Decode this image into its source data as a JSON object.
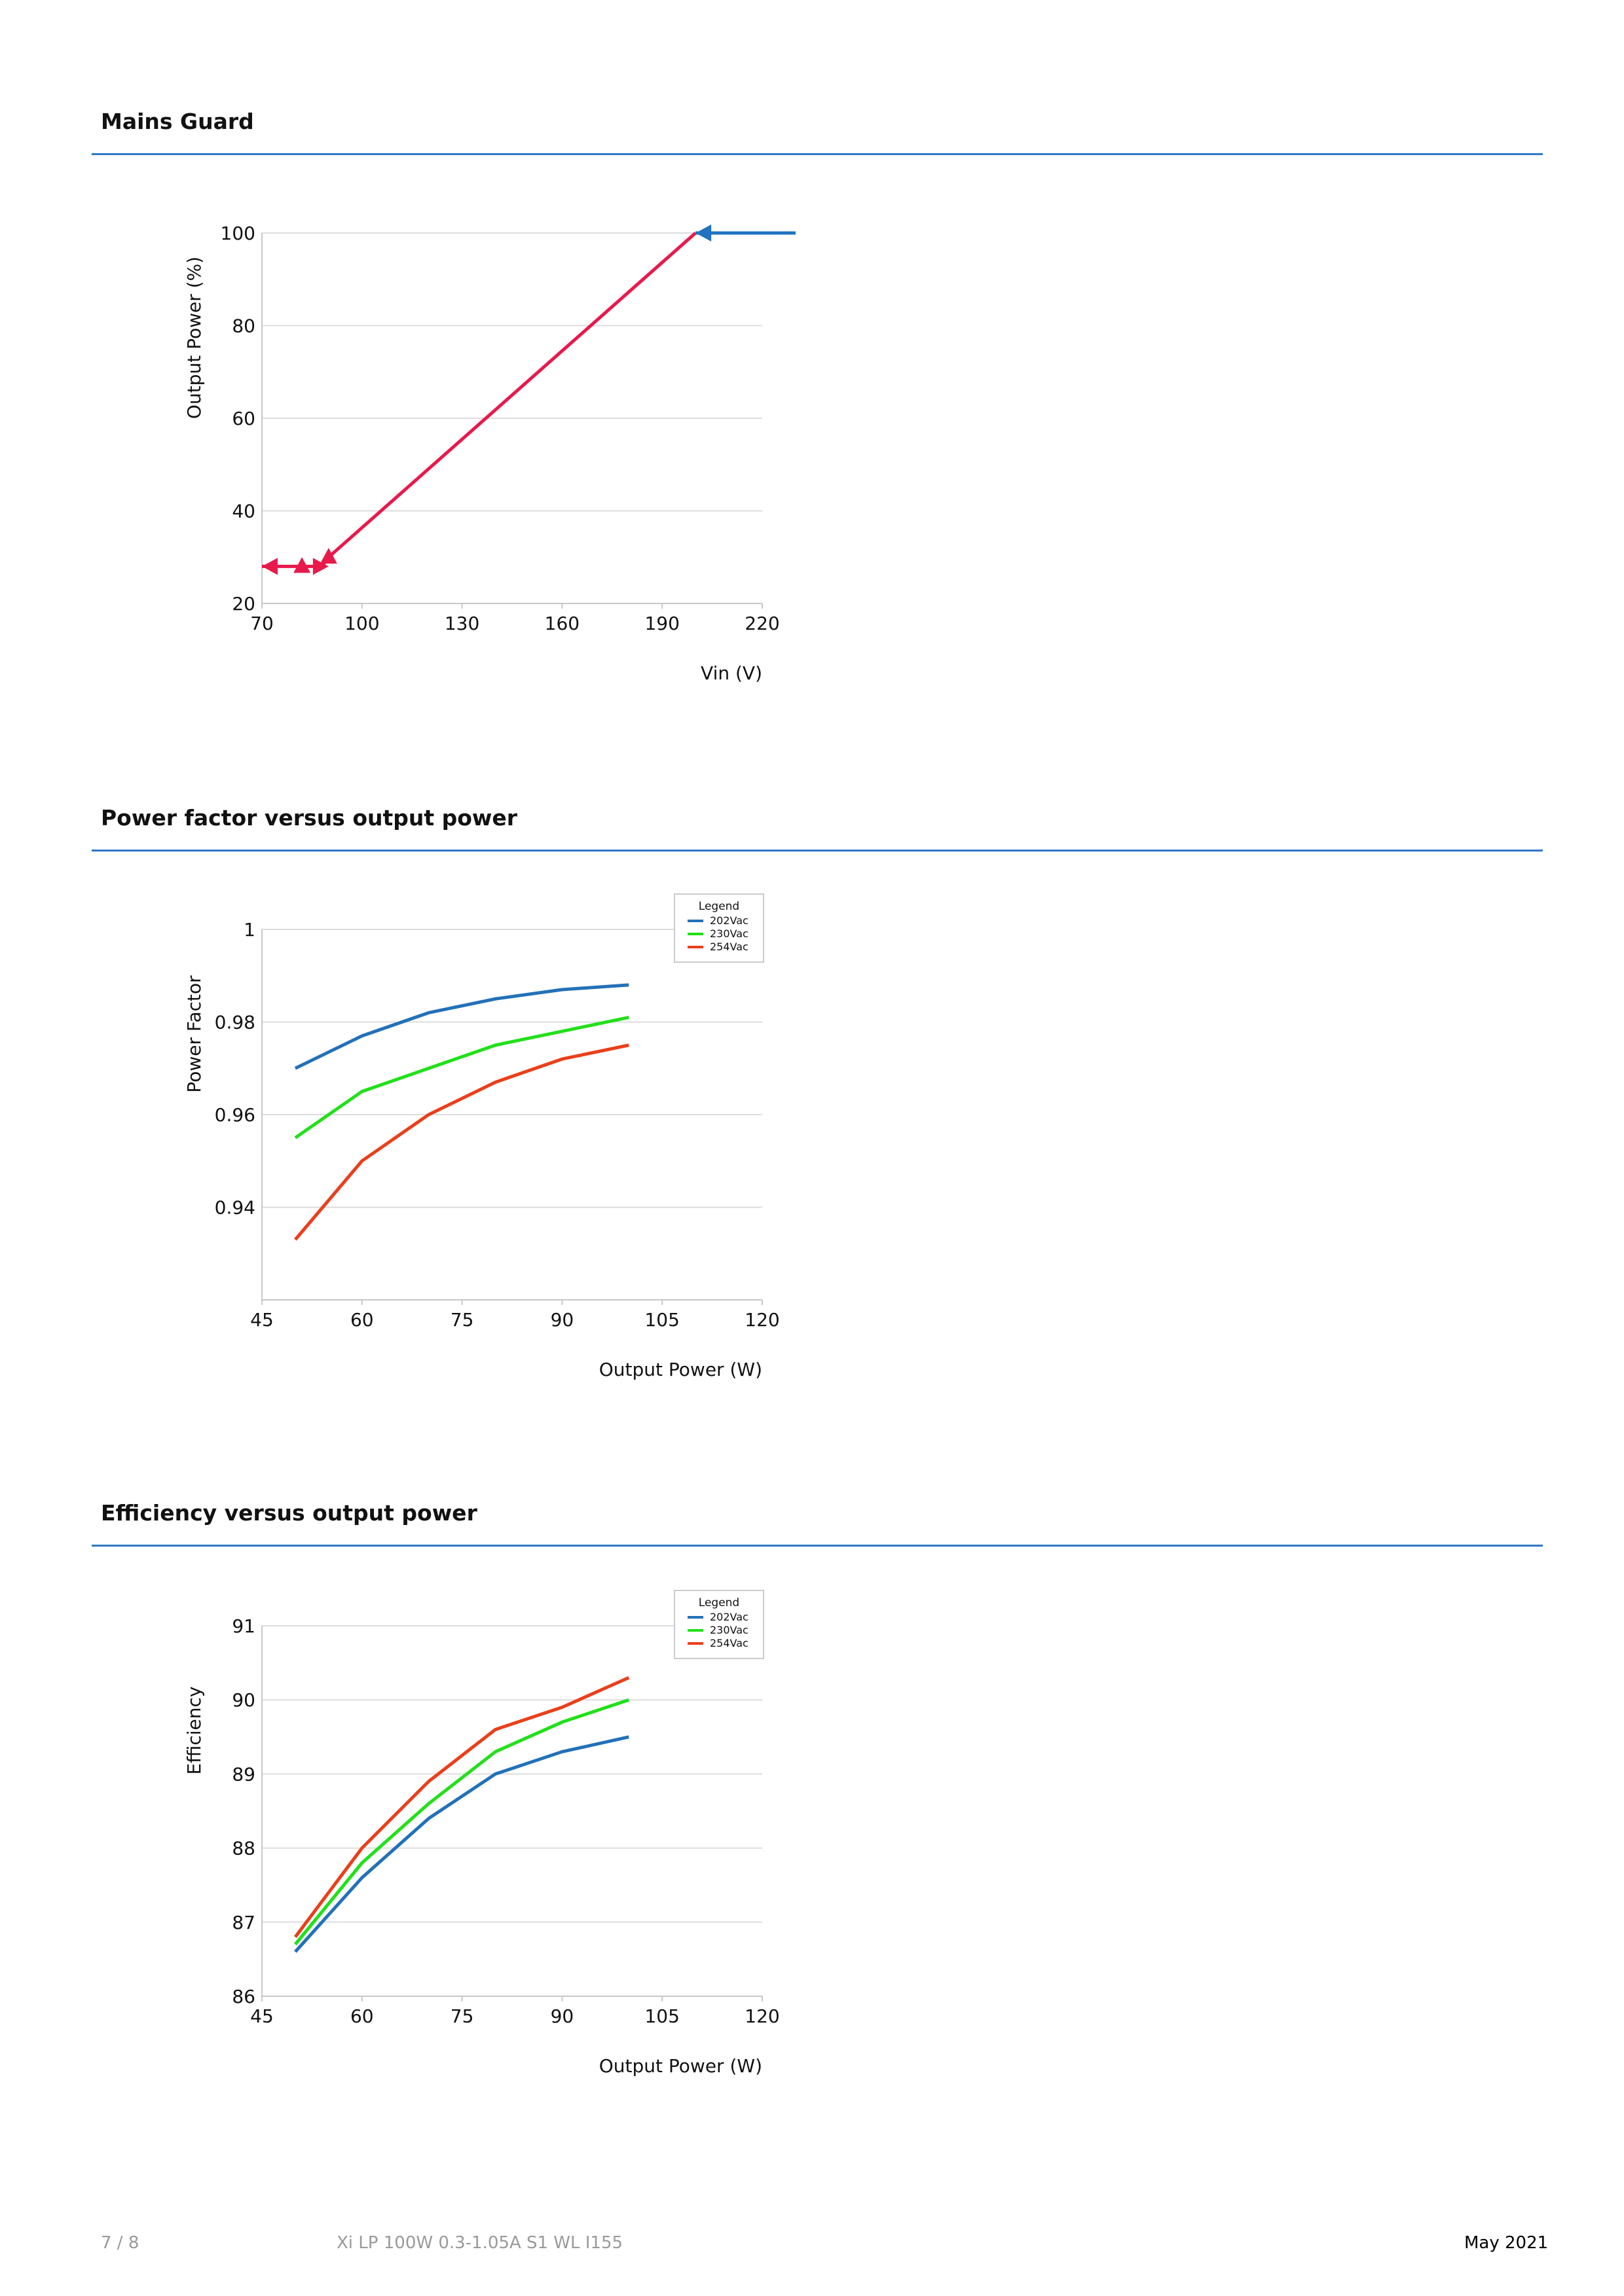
{
  "sections": [
    {
      "title": "Mains Guard"
    },
    {
      "title": "Power factor versus output power"
    },
    {
      "title": "Efficiency versus output power"
    }
  ],
  "chart_data": [
    {
      "type": "line",
      "title": "Mains Guard",
      "xlabel": "Vin (V)",
      "ylabel": "Output Power (%)",
      "xlim": [
        70,
        220
      ],
      "ylim": [
        20,
        100
      ],
      "xticks": [
        70,
        100,
        130,
        160,
        190,
        220
      ],
      "yticks": [
        20,
        40,
        60,
        80,
        100
      ],
      "grid": true,
      "colors": {
        "curve": "#e8194b",
        "arrow": "#1f73c0"
      },
      "series": [
        {
          "x": [
            70,
            88,
            90,
            200,
            230
          ],
          "y": [
            28,
            28,
            30,
            100,
            100
          ]
        }
      ],
      "annotations": [
        {
          "type": "arrow",
          "direction": "left",
          "at": [
            200,
            100
          ],
          "color": "#1f73c0"
        },
        {
          "type": "arrow",
          "direction": "left",
          "at": [
            70,
            28
          ],
          "color": "#e8194b"
        },
        {
          "type": "arrow",
          "direction": "right",
          "at": [
            90,
            28
          ],
          "color": "#e8194b"
        },
        {
          "type": "arrow",
          "direction": "up",
          "at": [
            82,
            30
          ],
          "color": "#e8194b"
        },
        {
          "type": "arrow",
          "direction": "up",
          "at": [
            90,
            32
          ],
          "color": "#e8194b"
        }
      ]
    },
    {
      "type": "line",
      "title": "Power factor versus output power",
      "xlabel": "Output Power (W)",
      "ylabel": "Power Factor",
      "xlim": [
        45,
        120
      ],
      "ylim": [
        0.92,
        1
      ],
      "xticks": [
        45,
        60,
        75,
        90,
        105,
        120
      ],
      "yticks": [
        0.94,
        0.96,
        0.98,
        1
      ],
      "ytick_labels": [
        "0.94",
        "0.96",
        "0.98",
        "1"
      ],
      "grid": true,
      "legend": {
        "title": "Legend",
        "position": "top-right"
      },
      "x": [
        50,
        60,
        70,
        80,
        90,
        100
      ],
      "series": [
        {
          "name": "202Vac",
          "color": "#2271b8",
          "values": [
            0.97,
            0.977,
            0.982,
            0.985,
            0.987,
            0.988
          ]
        },
        {
          "name": "230Vac",
          "color": "#22e01a",
          "values": [
            0.955,
            0.965,
            0.97,
            0.975,
            0.978,
            0.981
          ]
        },
        {
          "name": "254Vac",
          "color": "#ea3f1b",
          "values": [
            0.933,
            0.95,
            0.96,
            0.967,
            0.972,
            0.975
          ]
        }
      ]
    },
    {
      "type": "line",
      "title": "Efficiency versus output power",
      "xlabel": "Output Power (W)",
      "ylabel": "Efficiency",
      "xlim": [
        45,
        120
      ],
      "ylim": [
        86,
        91
      ],
      "xticks": [
        45,
        60,
        75,
        90,
        105,
        120
      ],
      "yticks": [
        86,
        87,
        88,
        89,
        90,
        91
      ],
      "grid": true,
      "legend": {
        "title": "Legend",
        "position": "top-right"
      },
      "x": [
        50,
        60,
        70,
        80,
        90,
        100
      ],
      "series": [
        {
          "name": "202Vac",
          "color": "#2271b8",
          "values": [
            86.6,
            87.6,
            88.4,
            89.0,
            89.3,
            89.5
          ]
        },
        {
          "name": "230Vac",
          "color": "#22e01a",
          "values": [
            86.7,
            87.8,
            88.6,
            89.3,
            89.7,
            90.0
          ]
        },
        {
          "name": "254Vac",
          "color": "#ea3f1b",
          "values": [
            86.8,
            88.0,
            88.9,
            89.6,
            89.9,
            90.3
          ]
        }
      ]
    }
  ],
  "footer": {
    "page": "7 / 8",
    "product": "Xi LP 100W 0.3-1.05A S1 WL I155",
    "date": "May 2021"
  }
}
